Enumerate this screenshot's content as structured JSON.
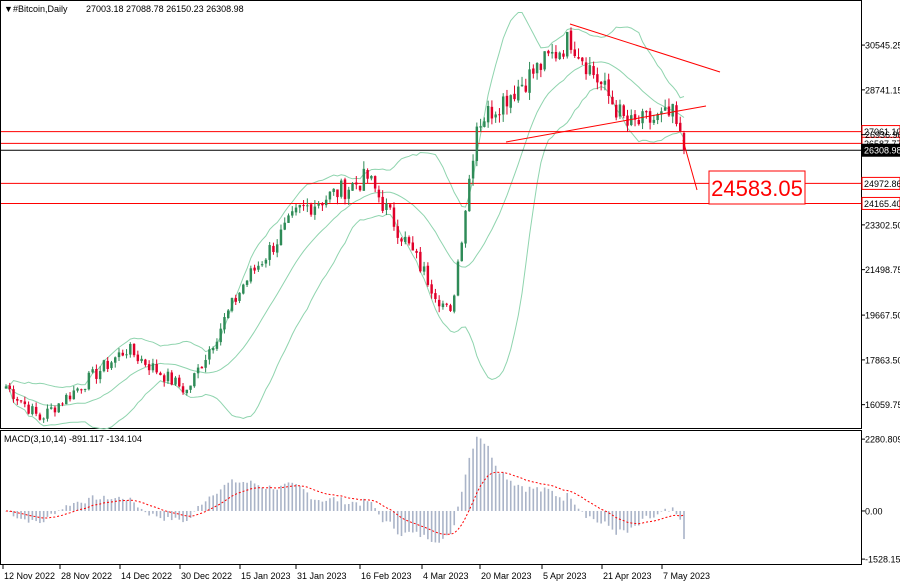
{
  "header": {
    "symbol": "#Bitcoin,Daily",
    "ohlc": "27003.18 27088.78 26150.23 26308.98"
  },
  "macd_header": "MACD(3,10,14) -891.117 -134.104",
  "colors": {
    "bull": "#2e8b57",
    "bear": "#e0002a",
    "bands": "#8fd4ae",
    "signal": "#ff0000",
    "hist": "#aab4c8",
    "level_line": "#ff0000",
    "current_line": "#000000"
  },
  "chart_data": [
    {
      "type": "candlestick",
      "title": "#Bitcoin,Daily",
      "y_ticks": [
        30545.25,
        28741.15,
        26936.9,
        23302.5,
        21498.75,
        19667.5,
        17863.5,
        16059.75
      ],
      "ylim": [
        15200,
        32200
      ],
      "x_ticks": [
        "12 Nov 2022",
        "28 Nov 2022",
        "14 Dec 2022",
        "30 Dec 2022",
        "15 Jan 2023",
        "31 Jan 2023",
        "16 Feb 2023",
        "4 Mar 2023",
        "20 Mar 2023",
        "5 Apr 2023",
        "21 Apr 2023",
        "7 May 2023"
      ],
      "levels": [
        {
          "value": 27061.1,
          "label": "27061.10",
          "kind": "resistance"
        },
        {
          "value": 26587.77,
          "label": "26587.77",
          "kind": "resistance"
        },
        {
          "value": 26308.98,
          "label": "26308.98",
          "kind": "current"
        },
        {
          "value": 24972.86,
          "label": "24972.86",
          "kind": "support"
        },
        {
          "value": 24165.4,
          "label": "24165.40",
          "kind": "support"
        }
      ],
      "target_label": "24583.05",
      "key_points": [
        {
          "date": "2022-11-12",
          "close": 16800
        },
        {
          "date": "2022-11-21",
          "low": 15500
        },
        {
          "date": "2022-12-14",
          "high": 18300
        },
        {
          "date": "2022-12-30",
          "close": 16600
        },
        {
          "date": "2023-01-14",
          "close": 20900
        },
        {
          "date": "2023-01-29",
          "high": 23900
        },
        {
          "date": "2023-02-16",
          "high": 25200
        },
        {
          "date": "2023-03-10",
          "low": 19600
        },
        {
          "date": "2023-03-17",
          "close": 27400
        },
        {
          "date": "2023-04-11",
          "high": 30800
        },
        {
          "date": "2023-04-26",
          "low": 27300
        },
        {
          "date": "2023-05-08",
          "close": 27700
        },
        {
          "date": "2023-05-11",
          "close": 26308.98
        }
      ],
      "indicators": [
        "Bollinger Bands"
      ]
    },
    {
      "type": "bar+line",
      "title": "MACD(3,10,14)",
      "values": [
        -891.117,
        -134.104
      ],
      "y_ticks": [
        2280.809,
        0.0,
        -1528.154
      ],
      "ylim": [
        -1620,
        2380
      ]
    }
  ]
}
